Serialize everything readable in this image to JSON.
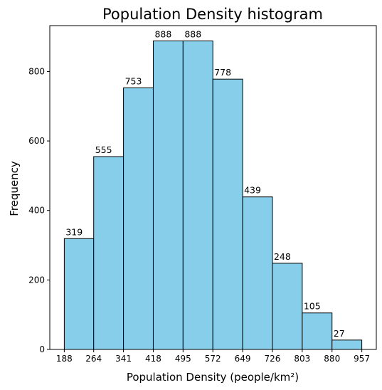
{
  "chart_data": {
    "type": "bar",
    "title": "Population Density histogram",
    "xlabel": "Population Density (people/km²)",
    "ylabel": "Frequency",
    "bin_edges": [
      188,
      264,
      341,
      418,
      495,
      572,
      649,
      726,
      803,
      880,
      957
    ],
    "x_tick_labels": [
      "188",
      "264",
      "341",
      "418",
      "495",
      "572",
      "649",
      "726",
      "803",
      "880",
      "957"
    ],
    "values": [
      319,
      555,
      753,
      888,
      888,
      778,
      439,
      248,
      105,
      27
    ],
    "value_labels": [
      "319",
      "555",
      "753",
      "888",
      "888",
      "778",
      "439",
      "248",
      "105",
      "27"
    ],
    "y_ticks": [
      0,
      200,
      400,
      600,
      800
    ],
    "y_tick_labels": [
      "0",
      "200",
      "400",
      "600",
      "800"
    ],
    "ylim": [
      0,
      932
    ],
    "grid": false,
    "legend": "none",
    "bar_color": "#87CEEB",
    "edge_color": "#000000"
  }
}
